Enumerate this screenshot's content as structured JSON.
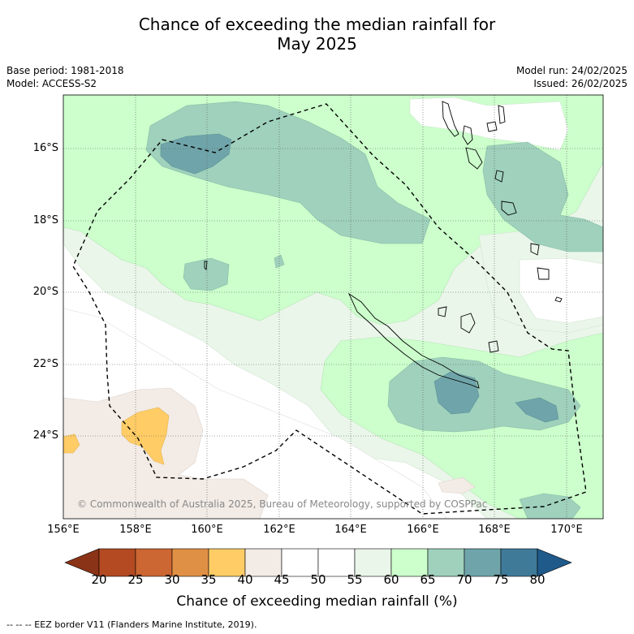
{
  "header": {
    "title_line1": "Chance of exceeding the median rainfall for",
    "title_line2": "May 2025",
    "base_period": "Base period: 1981-2018",
    "model": "Model: ACCESS-S2",
    "model_run": "Model run: 24/02/2025",
    "issued": "Issued: 26/02/2025"
  },
  "map": {
    "lat_labels": [
      "16°S",
      "18°S",
      "20°S",
      "22°S",
      "24°S"
    ],
    "lon_labels": [
      "156°E",
      "158°E",
      "160°E",
      "162°E",
      "164°E",
      "166°E",
      "168°E",
      "170°E"
    ],
    "credit": "© Commonwealth of Australia 2025, Bureau of Meteorology, supported by COSPPac"
  },
  "colorbar": {
    "ticks": [
      "20",
      "25",
      "30",
      "35",
      "40",
      "45",
      "50",
      "55",
      "60",
      "65",
      "70",
      "75",
      "80"
    ],
    "colors": [
      "#8a3316",
      "#b34a22",
      "#cc6633",
      "#e09044",
      "#ffcc66",
      "#f2ebe6",
      "#ffffff",
      "#ffffff",
      "#eaf6ea",
      "#ccffcc",
      "#9fd1bc",
      "#6fa5aa",
      "#3f7a99",
      "#1f5a8a"
    ],
    "title": "Chance of exceeding median rainfall (%)"
  },
  "footnote": "--  --  -- EEZ border V11 (Flanders Marine Institute, 2019)."
}
